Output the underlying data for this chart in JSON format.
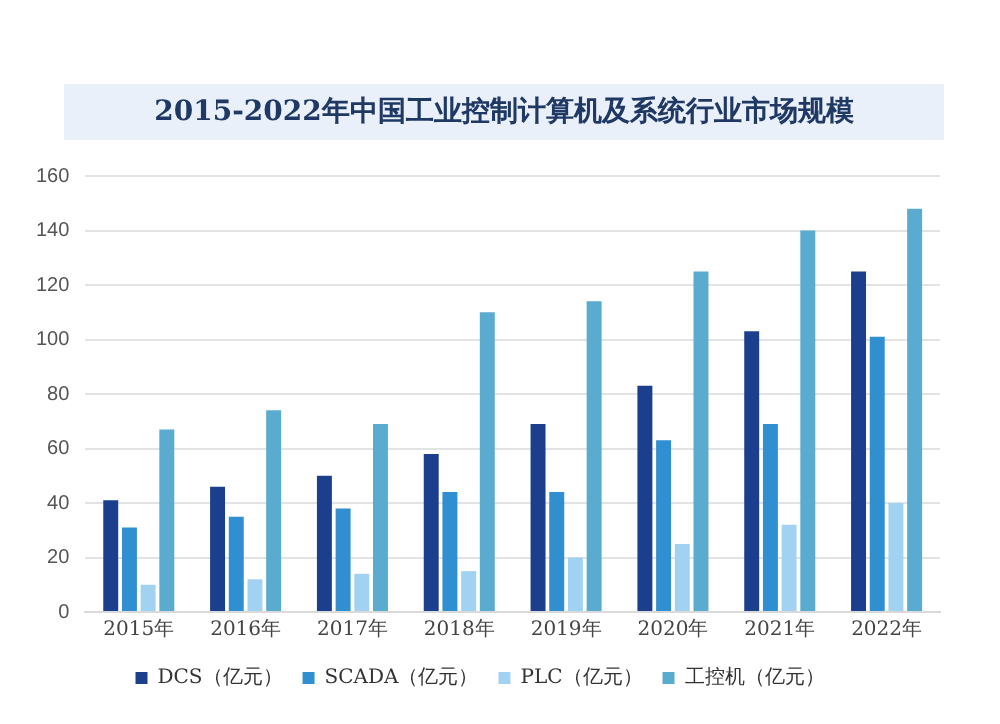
{
  "chart_data": {
    "type": "bar",
    "title": "2015-2022年中国工业控制计算机及系统行业市场规模",
    "categories": [
      "2015年",
      "2016年",
      "2017年",
      "2018年",
      "2019年",
      "2020年",
      "2021年",
      "2022年"
    ],
    "series": [
      {
        "name": "DCS（亿元）",
        "color": "#1b3f8c",
        "values": [
          41,
          46,
          50,
          58,
          69,
          83,
          103,
          125
        ]
      },
      {
        "name": "SCADA（亿元）",
        "color": "#2f8fd0",
        "values": [
          31,
          35,
          38,
          44,
          44,
          63,
          69,
          101
        ]
      },
      {
        "name": "PLC（亿元）",
        "color": "#a2d2f2",
        "values": [
          10,
          12,
          14,
          15,
          20,
          25,
          32,
          40
        ]
      },
      {
        "name": "工控机（亿元）",
        "color": "#5aabd0",
        "values": [
          67,
          74,
          69,
          110,
          114,
          125,
          140,
          148
        ]
      }
    ],
    "ylim": [
      0,
      160
    ],
    "yticks": [
      0,
      20,
      40,
      60,
      80,
      100,
      120,
      140,
      160
    ],
    "grid": "y",
    "legend": "bottom"
  }
}
